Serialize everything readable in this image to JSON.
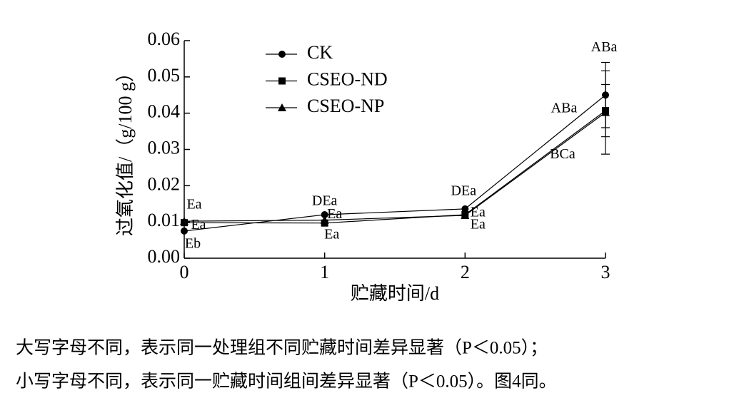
{
  "chart_data": {
    "type": "line",
    "y_label": "过氧化值/（g/100 g）",
    "x_label": "贮藏时间/d",
    "x": [
      0,
      1,
      2,
      3
    ],
    "xlim": [
      0,
      3
    ],
    "xticks": [
      0,
      1,
      2,
      3
    ],
    "ylim": [
      0,
      0.06
    ],
    "yticks": [
      {
        "value": 0,
        "label": "0.00"
      },
      0.01,
      0.02,
      0.03,
      0.04,
      0.05,
      0.06
    ],
    "legend": "upper left",
    "series": [
      {
        "name": "CK",
        "marker": "circle",
        "color": "#000000",
        "values": [
          0.0075,
          0.012,
          0.0136,
          0.045
        ],
        "errors": [
          null,
          null,
          null,
          0.009
        ],
        "labels": [
          "Eb",
          "DEa",
          "DEa",
          "ABa"
        ]
      },
      {
        "name": "CSEO-ND",
        "marker": "square",
        "color": "#000000",
        "values": [
          0.0098,
          0.0097,
          0.012,
          0.0407
        ],
        "errors": [
          null,
          null,
          null,
          0.0072
        ],
        "labels": [
          "Ea",
          "Ea",
          "Ea",
          "ABa"
        ]
      },
      {
        "name": "CSEO-NP",
        "marker": "triangle",
        "color": "#000000",
        "values": [
          0.0102,
          0.0105,
          0.0118,
          0.0402
        ],
        "errors": [
          null,
          null,
          null,
          0.0115
        ],
        "labels": [
          "Ea",
          "Ea",
          "Ea",
          "BCa"
        ]
      }
    ],
    "notes": [
      "大写字母不同，表示同一处理组不同贮藏时间差异显著（P＜0.05）；",
      "小写字母不同，表示同一贮藏时间组间差异显著（P＜0.05）。图4同。"
    ]
  }
}
